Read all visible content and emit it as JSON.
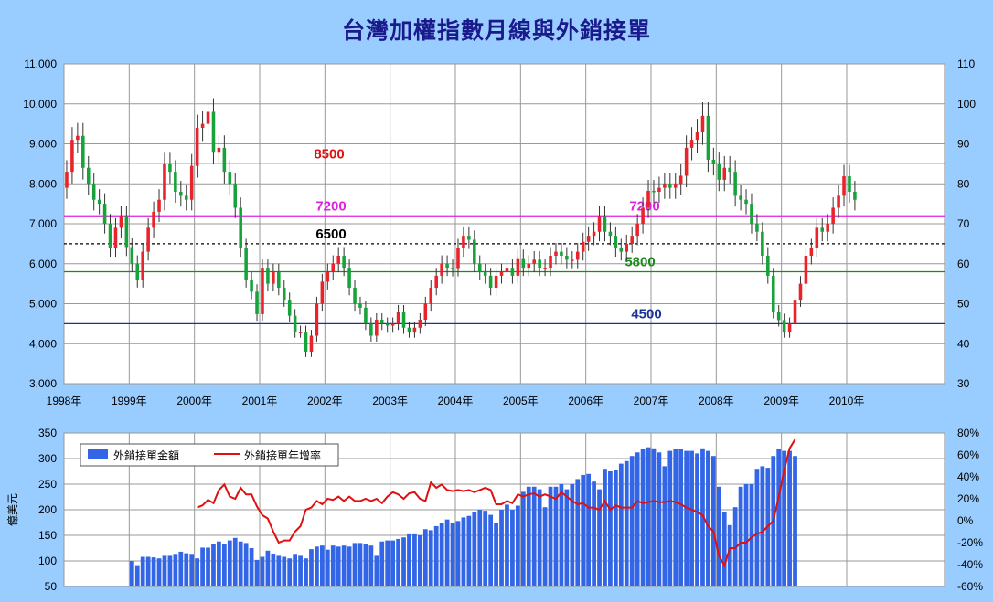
{
  "title": "台灣加權指數月線與外銷接單",
  "colors": {
    "background": "#99ccff",
    "plot_background": "#ffffff",
    "up_candle": "#e8232b",
    "down_candle": "#17a33a",
    "bar": "#3366e6",
    "growth_line": "#e01010",
    "line_8500": "#e01010",
    "line_7200": "#e020e0",
    "line_6500": "#000000",
    "line_5800": "#1a8a1a",
    "line_4500": "#1a3399"
  },
  "chart_data": [
    {
      "type": "candlestick",
      "title": "台灣加權指數月線與外銷接單",
      "x_ticks": [
        "1998年",
        "1999年",
        "2000年",
        "2001年",
        "2002年",
        "2003年",
        "2004年",
        "2005年",
        "2006年",
        "2007年",
        "2008年",
        "2009年",
        "2010年"
      ],
      "start": "1998-01",
      "ylim": [
        3000,
        11000
      ],
      "y_ticks": [
        "3,000",
        "4,000",
        "5,000",
        "6,000",
        "7,000",
        "8,000",
        "9,000",
        "10,000",
        "11,000"
      ],
      "y2lim": [
        30,
        110
      ],
      "y2_ticks": [
        "30",
        "40",
        "50",
        "60",
        "70",
        "80",
        "90",
        "100",
        "110"
      ],
      "grid": true,
      "monthly_close": [
        8300,
        9100,
        9200,
        8400,
        8000,
        7600,
        7500,
        7000,
        6400,
        6900,
        7200,
        6418,
        6000,
        5600,
        6300,
        6900,
        7300,
        7600,
        8500,
        8300,
        7800,
        7700,
        7600,
        8448,
        9400,
        9500,
        9800,
        8800,
        8900,
        8300,
        8000,
        7400,
        6400,
        5600,
        5300,
        4739,
        5900,
        5500,
        5800,
        5400,
        5100,
        4700,
        4300,
        4300,
        3800,
        4200,
        5000,
        5551,
        5800,
        6000,
        6200,
        5900,
        5400,
        5000,
        4900,
        4500,
        4200,
        4600,
        4500,
        4452,
        4500,
        4800,
        4400,
        4300,
        4400,
        4600,
        5000,
        5400,
        5700,
        6000,
        5900,
        5890,
        6400,
        6700,
        6600,
        6000,
        5800,
        5700,
        5400,
        5700,
        5800,
        5900,
        5700,
        6140,
        5900,
        6000,
        6100,
        5900,
        5900,
        6200,
        6300,
        6200,
        6100,
        6100,
        6300,
        6548,
        6700,
        6800,
        7200,
        6800,
        6700,
        6400,
        6300,
        6500,
        6700,
        7000,
        7400,
        7824,
        7800,
        7900,
        8000,
        7900,
        8000,
        8200,
        8900,
        9100,
        9300,
        9700,
        8600,
        8506,
        8100,
        8400,
        8300,
        7700,
        7600,
        7500,
        7000,
        6800,
        6200,
        5700,
        4800,
        4591,
        4300,
        4500,
        5100,
        5500,
        6200,
        6400,
        6900,
        6800,
        7000,
        7400,
        7700,
        8188,
        7800,
        7600
      ]
    },
    {
      "series_type": "lines",
      "lines": [
        {
          "label": "8500",
          "value": 8500,
          "style": "solid"
        },
        {
          "label": "7200",
          "value": 7200,
          "style": "solid"
        },
        {
          "label": "6500",
          "value": 6500,
          "style": "dashed"
        },
        {
          "label": "5800",
          "value": 5800,
          "style": "solid"
        },
        {
          "label": "4500",
          "value": 4500,
          "style": "solid"
        }
      ]
    },
    {
      "type": "bar+line",
      "ylabel": "億美元",
      "ylim": [
        50,
        350
      ],
      "y_ticks": [
        "50",
        "100",
        "150",
        "200",
        "250",
        "300",
        "350"
      ],
      "y2lim": [
        -60,
        80
      ],
      "y2_ticks": [
        "-60%",
        "-40%",
        "-20%",
        "0%",
        "20%",
        "40%",
        "60%",
        "80%"
      ],
      "legend": [
        "外銷接單金額",
        "外銷接單年增率"
      ],
      "orders_start": "1999-01",
      "orders": [
        100,
        90,
        108,
        108,
        107,
        105,
        110,
        110,
        112,
        118,
        115,
        112,
        105,
        126,
        126,
        133,
        138,
        133,
        140,
        145,
        138,
        135,
        125,
        102,
        108,
        120,
        113,
        110,
        108,
        105,
        112,
        110,
        105,
        123,
        128,
        130,
        122,
        130,
        128,
        130,
        128,
        135,
        135,
        133,
        130,
        110,
        138,
        140,
        140,
        143,
        146,
        152,
        152,
        150,
        162,
        160,
        168,
        175,
        181,
        175,
        178,
        185,
        188,
        196,
        200,
        198,
        190,
        175,
        200,
        210,
        200,
        208,
        235,
        245,
        245,
        240,
        205,
        245,
        245,
        250,
        240,
        250,
        260,
        268,
        270,
        255,
        240,
        280,
        275,
        278,
        290,
        295,
        305,
        312,
        318,
        322,
        320,
        312,
        285,
        315,
        318,
        318,
        315,
        315,
        310,
        320,
        315,
        305,
        245,
        195,
        170,
        205,
        245,
        250,
        250,
        280,
        285,
        282,
        305,
        318,
        315,
        315,
        305
      ],
      "growth_start": "2000-01",
      "growth": [
        12,
        14,
        19,
        16,
        28,
        33,
        22,
        20,
        30,
        24,
        24,
        13,
        5,
        2,
        -10,
        -20,
        -18,
        -18,
        -10,
        -5,
        10,
        12,
        18,
        15,
        20,
        19,
        22,
        18,
        22,
        18,
        18,
        20,
        18,
        20,
        16,
        22,
        26,
        24,
        20,
        25,
        26,
        20,
        18,
        35,
        30,
        33,
        28,
        27,
        28,
        27,
        28,
        26,
        28,
        30,
        28,
        15,
        15,
        18,
        16,
        24,
        22,
        24,
        25,
        22,
        24,
        22,
        20,
        26,
        22,
        18,
        15,
        16,
        12,
        12,
        10,
        18,
        10,
        14,
        12,
        12,
        12,
        18,
        16,
        17,
        18,
        17,
        17,
        18,
        17,
        15,
        12,
        10,
        8,
        5,
        -5,
        -10,
        -32,
        -41,
        -25,
        -25,
        -20,
        -20,
        -15,
        -12,
        -10,
        -5,
        0,
        22,
        46,
        66,
        74
      ]
    }
  ]
}
